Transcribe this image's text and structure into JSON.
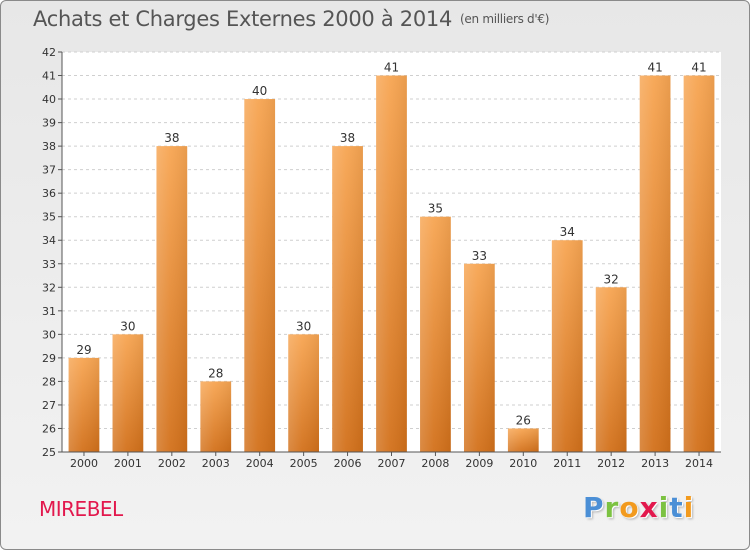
{
  "title": "Achats et Charges Externes 2000 à 2014",
  "subtitle": "(en milliers d'€)",
  "commune": "MIREBEL",
  "logo": {
    "letters": [
      "P",
      "r",
      "o",
      "x",
      "i",
      "t",
      "i"
    ]
  },
  "colors": {
    "bar_top": "#f7a552",
    "bar_bottom": "#d2701a",
    "commune": "#e2184d",
    "logo": [
      "#4b8fd6",
      "#7cc242",
      "#f29a1e",
      "#e2184d",
      "#7cc242",
      "#4b8fd6",
      "#f29a1e"
    ]
  },
  "chart_data": {
    "type": "bar",
    "categories": [
      "2000",
      "2001",
      "2002",
      "2003",
      "2004",
      "2005",
      "2006",
      "2007",
      "2008",
      "2009",
      "2010",
      "2011",
      "2012",
      "2013",
      "2014"
    ],
    "values": [
      29,
      30,
      38,
      28,
      40,
      30,
      38,
      41,
      35,
      33,
      26,
      34,
      32,
      41,
      41
    ],
    "ylim": [
      25,
      42
    ],
    "yticks": [
      25,
      26,
      27,
      28,
      29,
      30,
      31,
      32,
      33,
      34,
      35,
      36,
      37,
      38,
      39,
      40,
      41,
      42
    ],
    "grid": true,
    "data_labels": true
  }
}
